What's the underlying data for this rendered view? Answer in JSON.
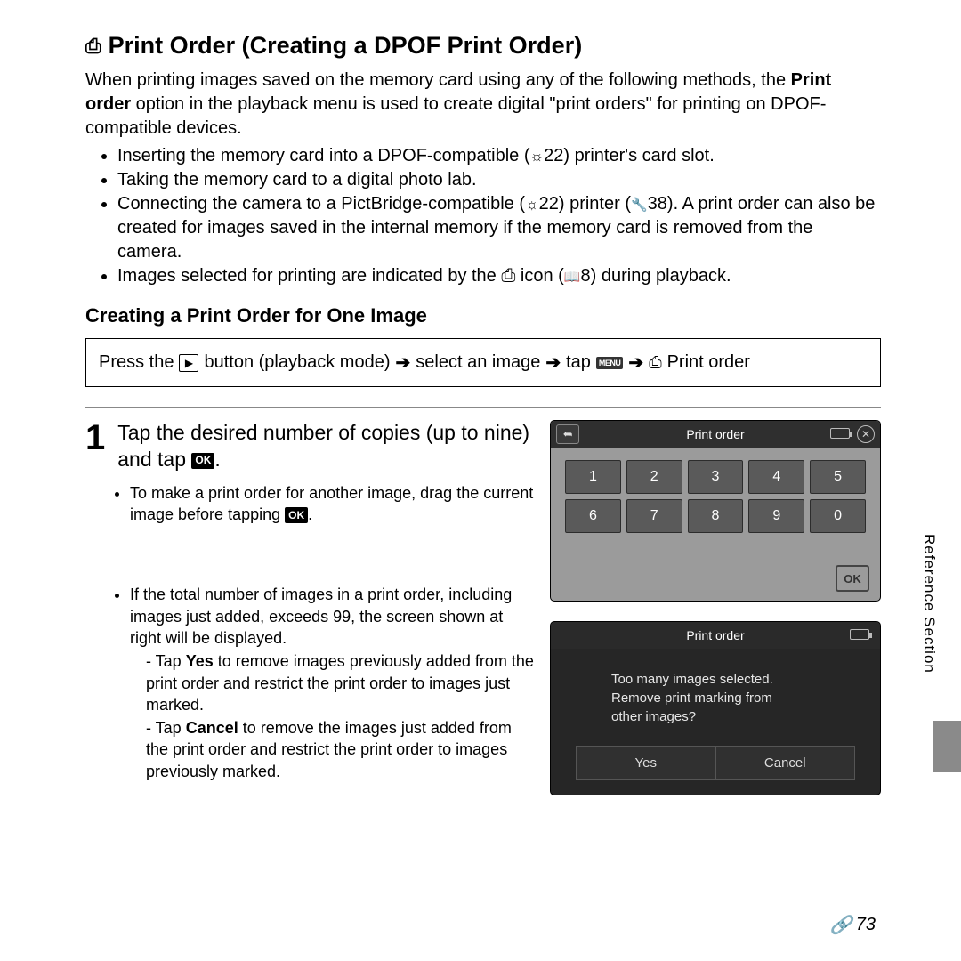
{
  "title": "Print Order (Creating a DPOF Print Order)",
  "intro_prefix": "When printing images saved on the memory card using any of the following methods, the ",
  "intro_bold": "Print order",
  "intro_suffix": " option in the playback menu is used to create digital \"print orders\" for printing on DPOF-compatible devices.",
  "bullets": {
    "b1a": "Inserting the memory card into a DPOF-compatible (",
    "b1b": "22) printer's card slot.",
    "b2": "Taking the memory card to a digital photo lab.",
    "b3a": "Connecting the camera to a PictBridge-compatible (",
    "b3b": "22) printer (",
    "b3c": "38). A print order can also be created for images saved in the internal memory if the memory card is removed from the camera.",
    "b4a": "Images selected for printing are indicated by the ",
    "b4b": " icon (",
    "b4c": "8) during playback."
  },
  "subhead": "Creating a Print Order for One Image",
  "nav": {
    "t1": "Press the ",
    "t2": " button (playback mode) ",
    "t3": " select an image ",
    "t4": " tap ",
    "t5": " Print order"
  },
  "step": {
    "num": "1",
    "text_a": "Tap the desired number of copies (up to nine) and tap ",
    "text_b": ".",
    "sub1a": "To make a print order for another image, drag the current image before tapping ",
    "sub1b": ".",
    "sub2": "If the total number of images in a print order, including images just added, exceeds 99, the screen shown at right will be displayed.",
    "d1a": "Tap ",
    "d1bold": "Yes",
    "d1b": " to remove images previously added from the print order and restrict the print order to images just marked.",
    "d2a": "Tap ",
    "d2bold": "Cancel",
    "d2b": " to remove the images just added from the print order and restrict the print order to images previously marked."
  },
  "screen1": {
    "title": "Print order",
    "keys": [
      "1",
      "2",
      "3",
      "4",
      "5",
      "6",
      "7",
      "8",
      "9",
      "0"
    ],
    "ok": "OK"
  },
  "screen2": {
    "title": "Print order",
    "msg1": "Too many images selected.",
    "msg2": "Remove print marking from",
    "msg3": "other images?",
    "yes": "Yes",
    "cancel": "Cancel"
  },
  "side": "Reference Section",
  "pagenum": "73"
}
